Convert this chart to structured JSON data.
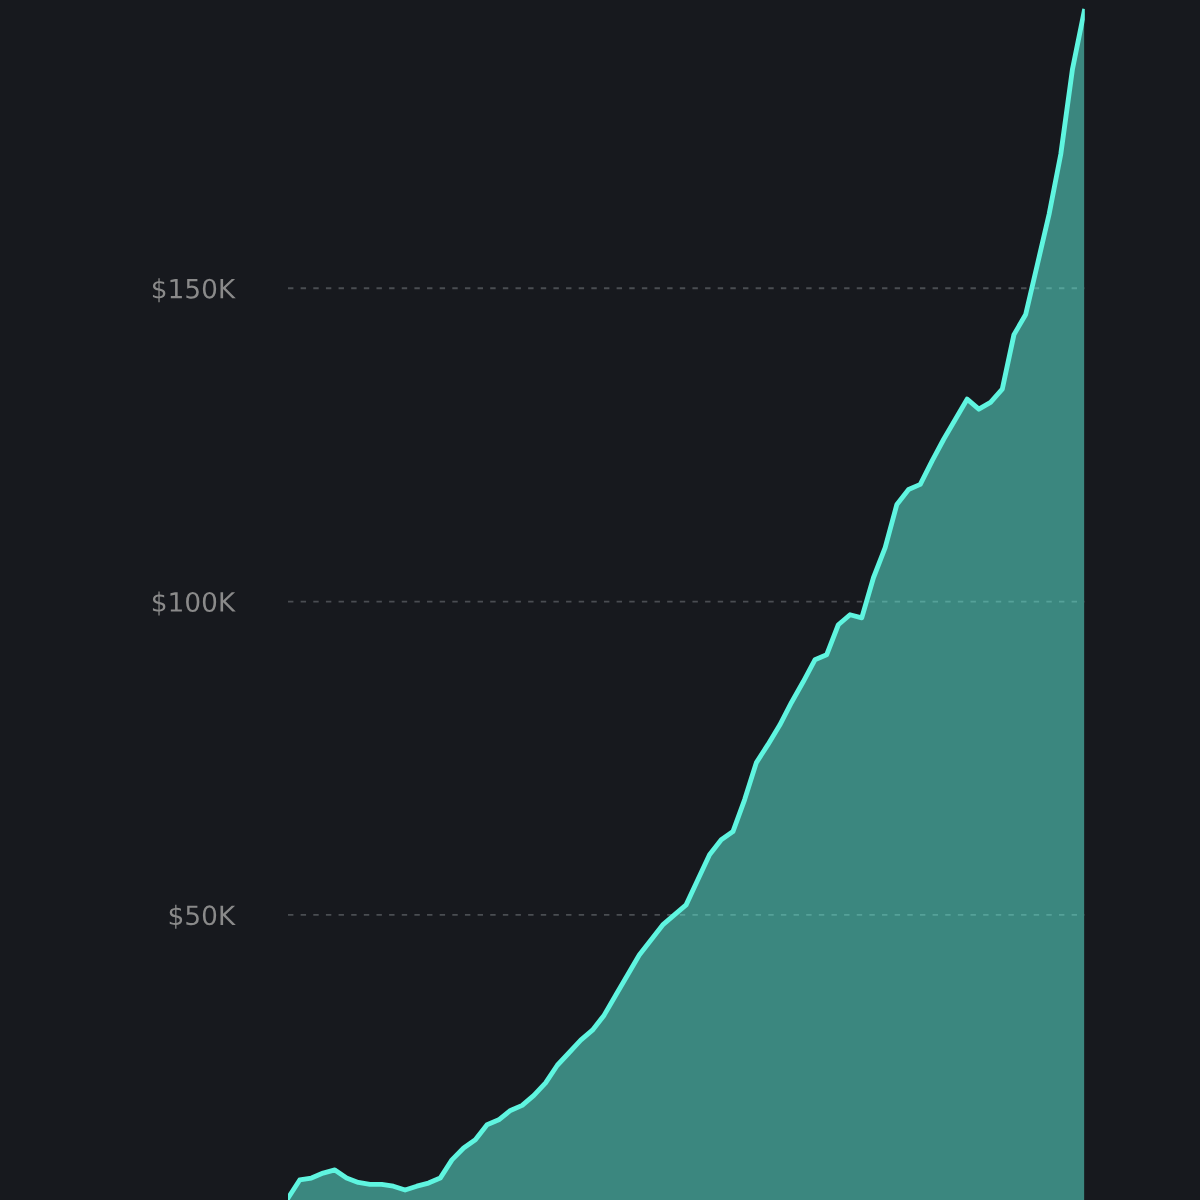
{
  "chart_data": {
    "type": "area",
    "categories": [
      null,
      null,
      null,
      null,
      null,
      null,
      null,
      null,
      null,
      null,
      null,
      null,
      null,
      null,
      null,
      null,
      null,
      null,
      null,
      null,
      null,
      null,
      null,
      null,
      null,
      null,
      null,
      null,
      null,
      null,
      null,
      null,
      null,
      null,
      null,
      null,
      null,
      null,
      null,
      null,
      null,
      null,
      null,
      null,
      null,
      null,
      null,
      null,
      null,
      null,
      null,
      null,
      null,
      null,
      null,
      null,
      null,
      null,
      null,
      null,
      null,
      null,
      null,
      null,
      null,
      null,
      null,
      null,
      null
    ],
    "series": [
      {
        "color": "#5ff5e0",
        "values": [
          4800,
          7700,
          8000,
          8800,
          9300,
          8000,
          7300,
          7000,
          7000,
          6700,
          6100,
          6700,
          7200,
          8000,
          10900,
          12800,
          14100,
          16500,
          17300,
          18800,
          19600,
          21200,
          23200,
          26000,
          28000,
          30000,
          31600,
          34000,
          37200,
          40400,
          43600,
          46000,
          48400,
          50000,
          51600,
          55600,
          59600,
          62000,
          63300,
          68400,
          74300,
          77200,
          80300,
          83900,
          87200,
          90700,
          91500,
          96300,
          97900,
          97400,
          103800,
          108600,
          115500,
          117900,
          118700,
          122400,
          125900,
          129100,
          132300,
          130700,
          131800,
          133900,
          142600,
          145800,
          153800,
          161800,
          171400,
          185000,
          194200
        ]
      }
    ],
    "ylim": [
      4500,
      196000
    ],
    "yticks": [
      {
        "value": 50000,
        "label": "$50K"
      },
      {
        "value": 100000,
        "label": "$100K"
      },
      {
        "value": 150000,
        "label": "$150K"
      }
    ],
    "grid": "y",
    "tick_labels": "y",
    "legend": false
  }
}
